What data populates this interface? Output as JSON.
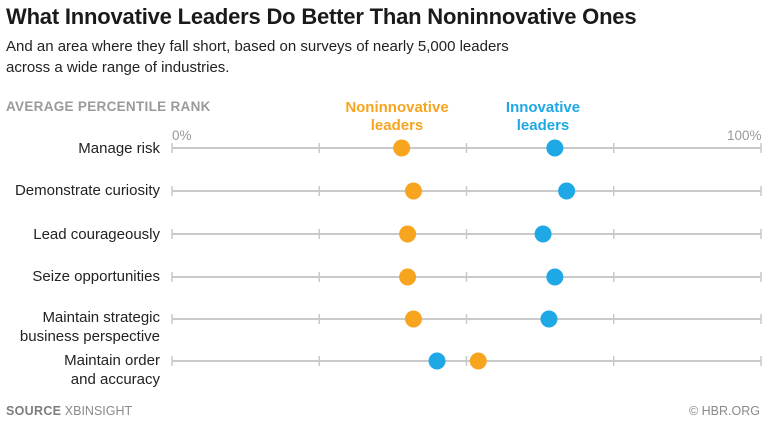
{
  "header": {
    "title": "What Innovative Leaders Do Better Than Noninnovative Ones",
    "subtitle": "And an area where they fall short, based on surveys of nearly 5,000 leaders across a wide range of industries."
  },
  "footer": {
    "source_label": "SOURCE",
    "source_value": "XBINSIGHT",
    "credit": "© HBR.ORG"
  },
  "chart_data": {
    "type": "scatter",
    "title": "What Innovative Leaders Do Better Than Noninnovative Ones",
    "subtitle": "And an area where they fall short, based on surveys of nearly 5,000 leaders across a wide range of industries.",
    "xlabel": "AVERAGE PERCENTILE RANK",
    "xlim": [
      0,
      100
    ],
    "x_tick_labels": [
      "0%",
      "100%"
    ],
    "grid": true,
    "legend_position": "top-center",
    "categories": [
      "Manage risk",
      "Demonstrate curiosity",
      "Lead courageously",
      "Seize opportunities",
      "Maintain strategic business perspective",
      "Maintain order and accuracy"
    ],
    "category_lines": [
      [
        "Manage risk"
      ],
      [
        "Demonstrate curiosity"
      ],
      [
        "Lead courageously"
      ],
      [
        "Seize opportunities"
      ],
      [
        "Maintain strategic",
        "business perspective"
      ],
      [
        "Maintain order",
        "and accuracy"
      ]
    ],
    "series": [
      {
        "name": "Noninnovative leaders",
        "label_lines": [
          "Noninnovative",
          "leaders"
        ],
        "color": "#f7a51e",
        "values": [
          39,
          41,
          40,
          40,
          41,
          52
        ]
      },
      {
        "name": "Innovative leaders",
        "label_lines": [
          "Innovative",
          "leaders"
        ],
        "color": "#1fa8e6",
        "values": [
          65,
          67,
          63,
          65,
          64,
          45
        ]
      }
    ]
  }
}
